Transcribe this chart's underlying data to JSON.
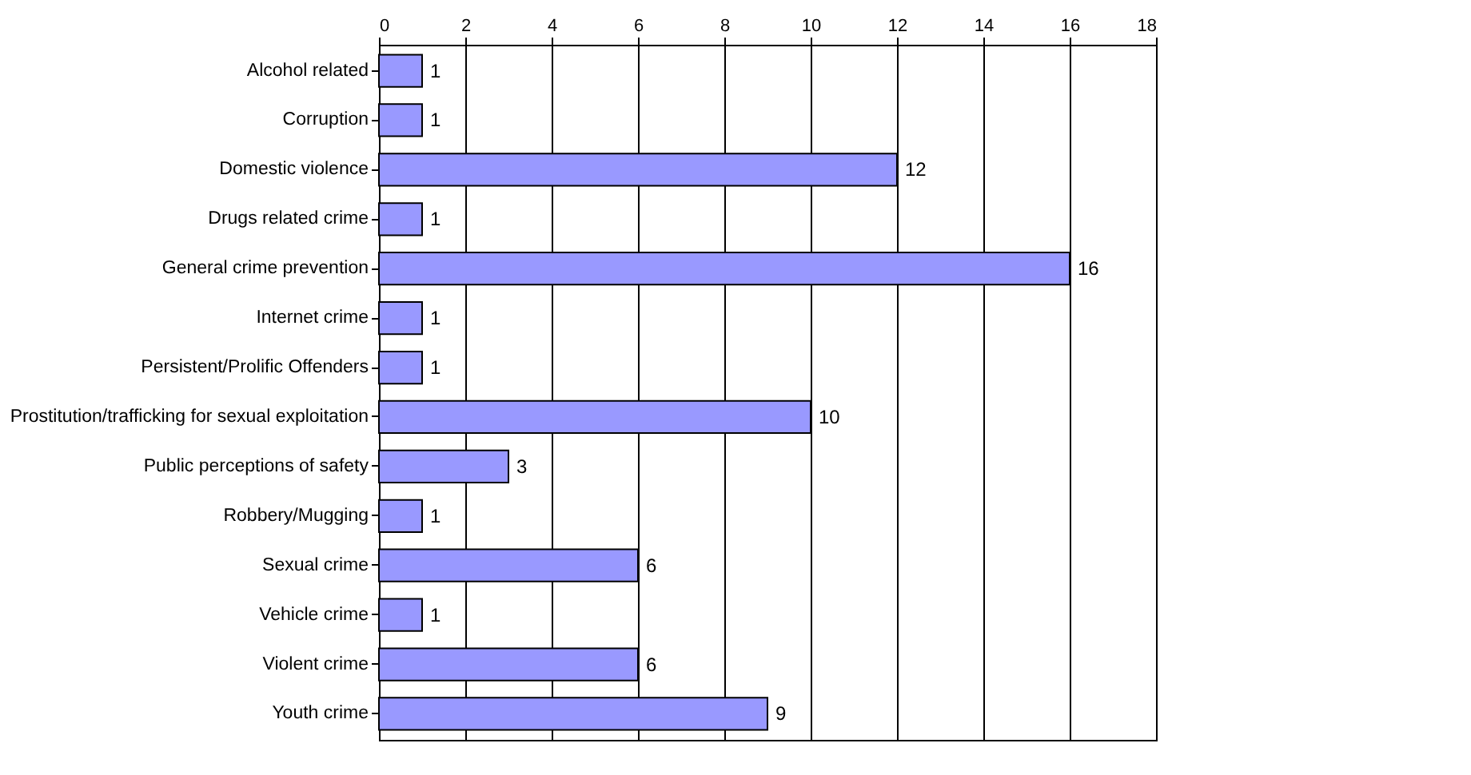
{
  "chart_data": {
    "type": "bar",
    "orientation": "horizontal",
    "categories": [
      "Alcohol related",
      "Corruption",
      "Domestic violence",
      "Drugs related crime",
      "General crime prevention",
      "Internet crime",
      "Persistent/Prolific Offenders",
      "Prostitution/trafficking for sexual exploitation",
      "Public perceptions of safety",
      "Robbery/Mugging",
      "Sexual crime",
      "Vehicle crime",
      "Violent crime",
      "Youth crime"
    ],
    "values": [
      1,
      1,
      12,
      1,
      16,
      1,
      1,
      10,
      3,
      1,
      6,
      1,
      6,
      9
    ],
    "color": "#9999ff",
    "xlim": [
      0,
      18
    ],
    "xticks": [
      0,
      2,
      4,
      6,
      8,
      10,
      12,
      14,
      16,
      18
    ],
    "grid": "x",
    "data_labels": true
  }
}
